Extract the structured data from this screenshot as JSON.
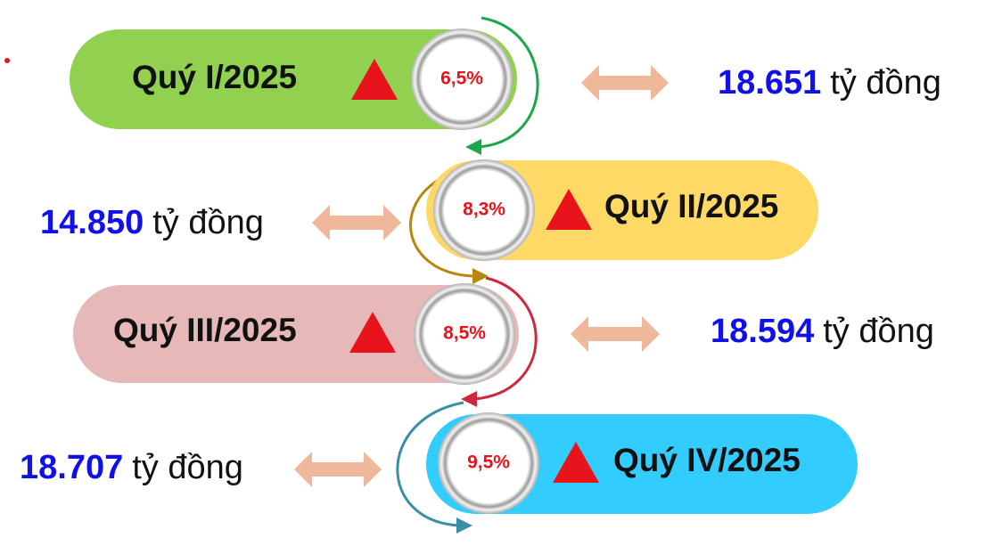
{
  "quarters": [
    {
      "label": "Quý I/2025",
      "growth": "6,5%",
      "amount": "18.651",
      "unit": "tỷ đồng"
    },
    {
      "label": "Quý II/2025",
      "growth": "8,3%",
      "amount": "14.850",
      "unit": "tỷ đồng"
    },
    {
      "label": "Quý III/2025",
      "growth": "8,5%",
      "amount": "18.594",
      "unit": "tỷ đồng"
    },
    {
      "label": "Quý IV/2025",
      "growth": "9,5%",
      "amount": "18.707",
      "unit": "tỷ đồng"
    }
  ]
}
